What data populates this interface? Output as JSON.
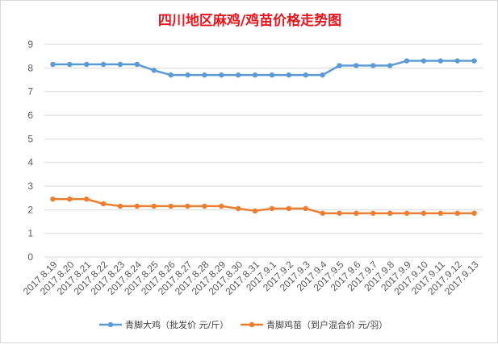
{
  "chart_data": {
    "type": "line",
    "title": "四川地区麻鸡/鸡苗价格走势图",
    "xlabel": "",
    "ylabel": "",
    "ylim": [
      0,
      9
    ],
    "y_ticks": [
      0,
      1,
      2,
      3,
      4,
      5,
      6,
      7,
      8,
      9
    ],
    "grid": "horizontal",
    "legend_position": "bottom",
    "categories": [
      "2017.8.19",
      "2017.8.20",
      "2017.8.21",
      "2017.8.22",
      "2017.8.23",
      "2017.8.24",
      "2017.8.25",
      "2017.8.26",
      "2017.8.27",
      "2017.8.28",
      "2017.8.29",
      "2017.8.30",
      "2017.8.31",
      "2017.9.1",
      "2017.9.2",
      "2017.9.3",
      "2017.9.4",
      "2017.9.5",
      "2017.9.6",
      "2017.9.7",
      "2017.9.8",
      "2017.9.9",
      "2017.9.10",
      "2017.9.11",
      "2017.9.12",
      "2017.9.13"
    ],
    "series": [
      {
        "name": "青脚大鸡（批发价 元/斤）",
        "color": "#5b9bd5",
        "values": [
          8.15,
          8.15,
          8.15,
          8.15,
          8.15,
          8.15,
          7.9,
          7.7,
          7.7,
          7.7,
          7.7,
          7.7,
          7.7,
          7.7,
          7.7,
          7.7,
          7.7,
          8.1,
          8.1,
          8.1,
          8.1,
          8.3,
          8.3,
          8.3,
          8.3,
          8.3
        ]
      },
      {
        "name": "青脚鸡苗（到户混合价 元/羽）",
        "color": "#ed7d31",
        "values": [
          2.45,
          2.45,
          2.45,
          2.25,
          2.15,
          2.15,
          2.15,
          2.15,
          2.15,
          2.15,
          2.15,
          2.05,
          1.95,
          2.05,
          2.05,
          2.05,
          1.85,
          1.85,
          1.85,
          1.85,
          1.85,
          1.85,
          1.85,
          1.85,
          1.85,
          1.85
        ]
      }
    ]
  }
}
